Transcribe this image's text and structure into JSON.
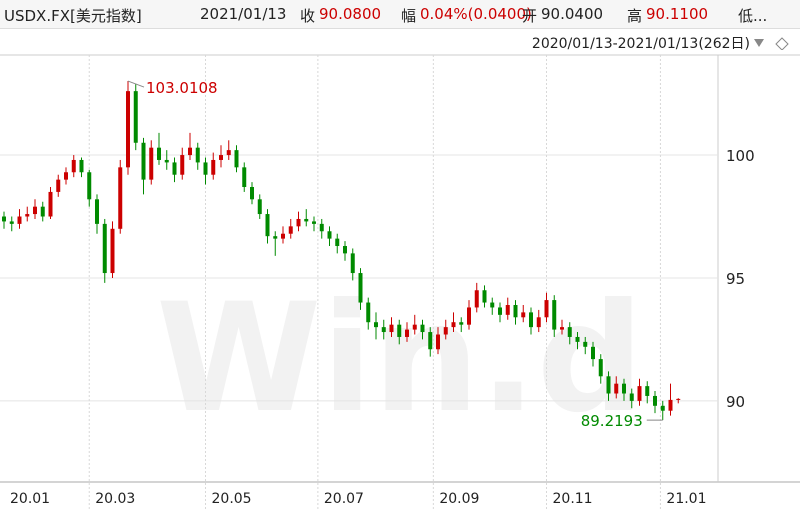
{
  "header": {
    "symbol": "USDX.FX[美元指数]",
    "date": "2021/01/13",
    "close_label": "收",
    "close": "90.0800",
    "change_label": "幅",
    "change": "0.04%(0.0400)",
    "open_label": "开",
    "open": "90.0400",
    "high_label": "高",
    "high": "90.1100",
    "low_label": "低..."
  },
  "range": "2020/01/13-2021/01/13(262日)",
  "chart_data": {
    "type": "candlestick",
    "watermark": "Win.d",
    "up_color": "#cc0000",
    "down_color": "#008a00",
    "ylim": [
      86.7,
      104.07
    ],
    "yticks": [
      90,
      95,
      100
    ],
    "xlim": [
      -0.5,
      88.5
    ],
    "xticks": [
      {
        "value": 0,
        "label": "20.01"
      },
      {
        "value": 11,
        "label": "20.03"
      },
      {
        "value": 26,
        "label": "20.05"
      },
      {
        "value": 40.5,
        "label": "20.07"
      },
      {
        "value": 55.4,
        "label": "20.09"
      },
      {
        "value": 70,
        "label": "20.11"
      },
      {
        "value": 84.7,
        "label": "21.01"
      }
    ],
    "grid": true,
    "ohlc": [
      [
        97.5,
        97.7,
        97.0,
        97.3
      ],
      [
        97.3,
        97.5,
        96.9,
        97.2
      ],
      [
        97.2,
        97.8,
        97.0,
        97.5
      ],
      [
        97.5,
        97.9,
        97.3,
        97.6
      ],
      [
        97.6,
        98.2,
        97.4,
        97.9
      ],
      [
        97.9,
        98.1,
        97.3,
        97.5
      ],
      [
        97.5,
        98.7,
        97.4,
        98.5
      ],
      [
        98.5,
        99.2,
        98.3,
        99.0
      ],
      [
        99.0,
        99.5,
        98.8,
        99.3
      ],
      [
        99.3,
        100.0,
        99.1,
        99.8
      ],
      [
        99.8,
        99.9,
        99.1,
        99.3
      ],
      [
        99.3,
        99.4,
        97.9,
        98.2
      ],
      [
        98.2,
        98.4,
        96.8,
        97.2
      ],
      [
        97.2,
        97.4,
        94.8,
        95.2
      ],
      [
        95.2,
        97.3,
        95.0,
        97.0
      ],
      [
        97.0,
        99.8,
        96.8,
        99.5
      ],
      [
        99.5,
        103.0108,
        99.2,
        102.6
      ],
      [
        102.6,
        102.9,
        100.2,
        100.5
      ],
      [
        100.5,
        100.7,
        98.4,
        99.0
      ],
      [
        99.0,
        100.6,
        98.8,
        100.3
      ],
      [
        100.3,
        100.9,
        99.6,
        99.8
      ],
      [
        99.8,
        100.2,
        99.4,
        99.7
      ],
      [
        99.7,
        99.9,
        98.9,
        99.2
      ],
      [
        99.2,
        100.3,
        99.0,
        100.0
      ],
      [
        100.0,
        100.9,
        99.8,
        100.3
      ],
      [
        100.3,
        100.5,
        99.4,
        99.7
      ],
      [
        99.7,
        99.9,
        98.8,
        99.2
      ],
      [
        99.2,
        100.1,
        99.0,
        99.8
      ],
      [
        99.8,
        100.4,
        99.5,
        100.0
      ],
      [
        100.0,
        100.6,
        99.8,
        100.2
      ],
      [
        100.2,
        100.4,
        99.3,
        99.5
      ],
      [
        99.5,
        99.7,
        98.5,
        98.7
      ],
      [
        98.7,
        98.9,
        98.0,
        98.2
      ],
      [
        98.2,
        98.4,
        97.4,
        97.6
      ],
      [
        97.6,
        97.8,
        96.4,
        96.7
      ],
      [
        96.7,
        96.9,
        95.9,
        96.6
      ],
      [
        96.6,
        97.1,
        96.4,
        96.8
      ],
      [
        96.8,
        97.4,
        96.6,
        97.1
      ],
      [
        97.1,
        97.7,
        96.9,
        97.4
      ],
      [
        97.4,
        97.8,
        97.1,
        97.3
      ],
      [
        97.3,
        97.5,
        96.9,
        97.2
      ],
      [
        97.2,
        97.4,
        96.6,
        96.9
      ],
      [
        96.9,
        97.1,
        96.3,
        96.6
      ],
      [
        96.6,
        96.8,
        96.0,
        96.3
      ],
      [
        96.3,
        96.5,
        95.7,
        96.0
      ],
      [
        96.0,
        96.2,
        94.9,
        95.2
      ],
      [
        95.2,
        95.4,
        93.7,
        94.0
      ],
      [
        94.0,
        94.2,
        92.9,
        93.2
      ],
      [
        93.2,
        93.6,
        92.5,
        93.0
      ],
      [
        93.0,
        93.3,
        92.5,
        92.8
      ],
      [
        92.8,
        93.4,
        92.6,
        93.1
      ],
      [
        93.1,
        93.3,
        92.3,
        92.6
      ],
      [
        92.6,
        93.2,
        92.4,
        92.9
      ],
      [
        92.9,
        93.5,
        92.7,
        93.1
      ],
      [
        93.1,
        93.3,
        92.5,
        92.8
      ],
      [
        92.8,
        93.0,
        91.8,
        92.1
      ],
      [
        92.1,
        93.0,
        91.9,
        92.7
      ],
      [
        92.7,
        93.3,
        92.5,
        93.0
      ],
      [
        93.0,
        93.6,
        92.8,
        93.2
      ],
      [
        93.2,
        93.4,
        92.8,
        93.1
      ],
      [
        93.1,
        94.1,
        92.9,
        93.8
      ],
      [
        93.8,
        94.8,
        93.6,
        94.5
      ],
      [
        94.5,
        94.7,
        93.8,
        94.0
      ],
      [
        94.0,
        94.2,
        93.5,
        93.8
      ],
      [
        93.8,
        94.0,
        93.2,
        93.5
      ],
      [
        93.5,
        94.2,
        93.3,
        93.9
      ],
      [
        93.9,
        94.1,
        93.1,
        93.4
      ],
      [
        93.4,
        93.9,
        93.2,
        93.6
      ],
      [
        93.6,
        93.8,
        92.7,
        93.0
      ],
      [
        93.0,
        93.7,
        92.8,
        93.4
      ],
      [
        93.4,
        94.4,
        93.2,
        94.1
      ],
      [
        94.1,
        94.3,
        92.6,
        92.9
      ],
      [
        92.9,
        93.3,
        92.7,
        93.0
      ],
      [
        93.0,
        93.2,
        92.3,
        92.6
      ],
      [
        92.6,
        92.8,
        92.1,
        92.4
      ],
      [
        92.4,
        92.6,
        91.9,
        92.2
      ],
      [
        92.2,
        92.4,
        91.4,
        91.7
      ],
      [
        91.7,
        91.9,
        90.7,
        91.0
      ],
      [
        91.0,
        91.2,
        90.0,
        90.3
      ],
      [
        90.3,
        91.0,
        90.1,
        90.7
      ],
      [
        90.7,
        90.9,
        90.0,
        90.3
      ],
      [
        90.3,
        90.5,
        89.7,
        90.0
      ],
      [
        90.0,
        90.9,
        89.8,
        90.6
      ],
      [
        90.6,
        90.8,
        89.9,
        90.2
      ],
      [
        90.2,
        90.4,
        89.5,
        89.8
      ],
      [
        89.8,
        90.0,
        89.2193,
        89.6
      ],
      [
        89.6,
        90.7,
        89.4,
        90.04
      ],
      [
        90.04,
        90.11,
        89.9,
        90.08
      ]
    ]
  }
}
